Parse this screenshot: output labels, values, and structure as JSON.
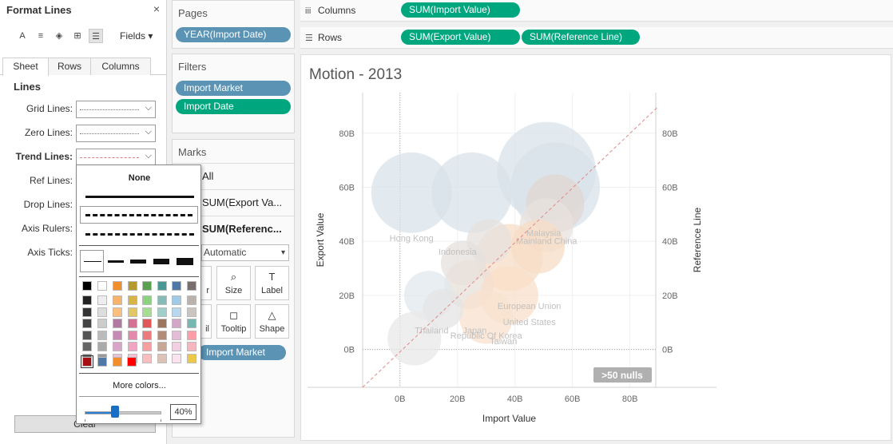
{
  "format_panel": {
    "title": "Format Lines",
    "close": "×",
    "fields_label": "Fields",
    "tabs": [
      "Sheet",
      "Rows",
      "Columns"
    ],
    "section_heading": "Lines",
    "rows": [
      {
        "label": "Grid Lines:"
      },
      {
        "label": "Zero Lines:"
      },
      {
        "label": "Trend Lines:"
      },
      {
        "label": "Ref Lines:"
      },
      {
        "label": "Drop Lines:"
      },
      {
        "label": "Axis Rulers:"
      },
      {
        "label": "Axis Ticks:"
      }
    ],
    "clear_label": "Clear"
  },
  "popup": {
    "none_label": "None",
    "more_colors": "More colors...",
    "opacity_value": "40%",
    "opacity_fraction": 0.4,
    "selected_color": "#a50f15"
  },
  "pages": {
    "title": "Pages",
    "pill": "YEAR(Import Date)"
  },
  "filters": {
    "title": "Filters",
    "pills": [
      "Import Market",
      "Import Date"
    ]
  },
  "marks": {
    "title": "Marks",
    "rows": [
      "All",
      "SUM(Export Va...",
      "SUM(Referenc..."
    ],
    "mark_type": "Automatic",
    "buttons": [
      {
        "icon": "◐",
        "label": "r"
      },
      {
        "icon": "⌕",
        "label": "Size"
      },
      {
        "icon": "T",
        "label": "Label"
      },
      {
        "icon": "▢",
        "label": "il"
      },
      {
        "icon": "◻",
        "label": "Tooltip"
      },
      {
        "icon": "△",
        "label": "Shape"
      }
    ],
    "detail_pill": "Import Market"
  },
  "columns_shelf": {
    "label": "Columns",
    "pills": [
      "SUM(Import Value)"
    ]
  },
  "rows_shelf": {
    "label": "Rows",
    "pills": [
      "SUM(Export Value)",
      "SUM(Reference Line)"
    ]
  },
  "view": {
    "title": "Motion - 2013",
    "nulls_badge": ">50 nulls"
  },
  "chart_data": {
    "type": "scatter",
    "title": "Motion - 2013",
    "xlabel": "Import Value",
    "ylabel": "Export Value",
    "y2label": "Reference Line",
    "x_ticks": [
      "0B",
      "20B",
      "40B",
      "60B",
      "80B"
    ],
    "y_ticks": [
      "0B",
      "20B",
      "40B",
      "60B",
      "80B"
    ],
    "xlim": [
      -13,
      89
    ],
    "ylim": [
      -14,
      95
    ],
    "point_labels": [
      {
        "text": "Hong Kong",
        "x": 4,
        "y": 40
      },
      {
        "text": "Indonesia",
        "x": 20,
        "y": 35
      },
      {
        "text": "Malaysia",
        "x": 50,
        "y": 42
      },
      {
        "text": "Mainland China",
        "x": 51,
        "y": 39
      },
      {
        "text": "European Union",
        "x": 45,
        "y": 15
      },
      {
        "text": "United States",
        "x": 45,
        "y": 9
      },
      {
        "text": "Thailand",
        "x": 11,
        "y": 6
      },
      {
        "text": "Japan",
        "x": 26,
        "y": 6
      },
      {
        "text": "Republic Of Korea",
        "x": 30,
        "y": 4
      },
      {
        "text": "Taiwan",
        "x": 36,
        "y": 2
      }
    ],
    "bubbles": [
      {
        "x": 4,
        "y": 58,
        "size": 36,
        "color": "#d8e1e9"
      },
      {
        "x": 25,
        "y": 58,
        "size": 36,
        "color": "#d8e1e9"
      },
      {
        "x": 51,
        "y": 66,
        "size": 44,
        "color": "#d8e1e9"
      },
      {
        "x": 54,
        "y": 60,
        "size": 40,
        "color": "#d8e1e9"
      },
      {
        "x": 54,
        "y": 54,
        "size": 26,
        "color": "#e0d6d2"
      },
      {
        "x": 51,
        "y": 46,
        "size": 24,
        "color": "#e8e2de"
      },
      {
        "x": 48,
        "y": 38,
        "size": 24,
        "color": "#f7dcc6"
      },
      {
        "x": 38,
        "y": 34,
        "size": 30,
        "color": "#f7dcc6"
      },
      {
        "x": 31,
        "y": 40,
        "size": 20,
        "color": "#e4e0de"
      },
      {
        "x": 22,
        "y": 32,
        "size": 20,
        "color": "#e4e0de"
      },
      {
        "x": 24,
        "y": 24,
        "size": 22,
        "color": "#e8e0da"
      },
      {
        "x": 38,
        "y": 20,
        "size": 26,
        "color": "#f8dfc9"
      },
      {
        "x": 30,
        "y": 12,
        "size": 24,
        "color": "#f8e2cf"
      },
      {
        "x": 10,
        "y": 20,
        "size": 22,
        "color": "#e1e8ee"
      },
      {
        "x": 15,
        "y": 15,
        "size": 18,
        "color": "#e4e4e4"
      },
      {
        "x": 5,
        "y": 4,
        "size": 24,
        "color": "#e8e8e8"
      }
    ],
    "trend_line": {
      "from": [
        -13,
        -14
      ],
      "to": [
        90,
        90
      ],
      "color": "#e08a8a",
      "style": "dashed"
    },
    "grid": true
  }
}
